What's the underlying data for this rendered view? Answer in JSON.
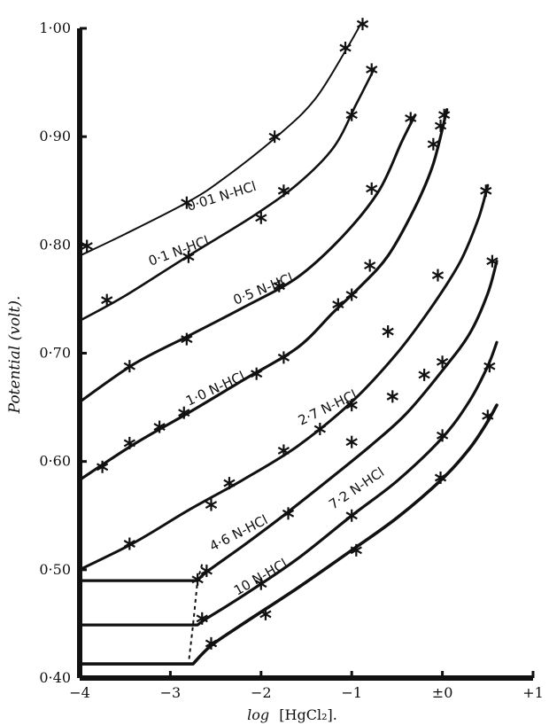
{
  "chart_data": {
    "type": "line",
    "title": "",
    "xlabel": "log [HgCl₂].",
    "xlabel_parts": {
      "prefix": "log",
      "suffix": "[HgCl₂]."
    },
    "ylabel": "Potential (volt).",
    "xlim": [
      -4,
      1
    ],
    "ylim": [
      0.4,
      1.0
    ],
    "x_ticks": [
      -4,
      -3,
      -2,
      -1,
      0,
      1
    ],
    "x_tick_labels": [
      "−4",
      "−3",
      "−2",
      "−1",
      "±0",
      "+1"
    ],
    "y_ticks": [
      0.4,
      0.5,
      0.6,
      0.7,
      0.8,
      0.9,
      1.0
    ],
    "y_tick_labels": [
      "0·40",
      "0·50",
      "0·60",
      "0·70",
      "0·80",
      "0·90",
      "1·00"
    ],
    "grid": false,
    "legend": "inline labels along curves",
    "series": [
      {
        "name": "0·01 N-HCl",
        "x": [
          -4.0,
          -3.5,
          -2.8,
          -2.4,
          -1.8,
          -1.4,
          -1.05,
          -0.9
        ],
        "y": [
          0.79,
          0.81,
          0.84,
          0.862,
          0.902,
          0.935,
          0.982,
          1.004
        ],
        "markers_x": [
          -3.92,
          -2.82,
          -1.85,
          -1.07,
          -0.88
        ],
        "markers_y": [
          0.799,
          0.839,
          0.9,
          0.982,
          1.004
        ]
      },
      {
        "name": "0·1 N-HCl",
        "x": [
          -4.0,
          -3.5,
          -2.8,
          -2.1,
          -1.6,
          -1.2,
          -0.95,
          -0.75
        ],
        "y": [
          0.73,
          0.753,
          0.79,
          0.826,
          0.856,
          0.89,
          0.93,
          0.963
        ],
        "markers_x": [
          -3.7,
          -2.8,
          -2.0,
          -1.75,
          -1.0,
          -0.78
        ],
        "markers_y": [
          0.749,
          0.789,
          0.825,
          0.85,
          0.92,
          0.962
        ]
      },
      {
        "name": "0·5 N-HCl",
        "x": [
          -4.0,
          -3.4,
          -2.8,
          -2.2,
          -1.6,
          -1.1,
          -0.7,
          -0.45,
          -0.3
        ],
        "y": [
          0.655,
          0.69,
          0.716,
          0.742,
          0.77,
          0.808,
          0.85,
          0.895,
          0.92
        ],
        "markers_x": [
          -3.45,
          -2.82,
          -1.8,
          -0.78,
          -0.35
        ],
        "markers_y": [
          0.688,
          0.713,
          0.762,
          0.852,
          0.917
        ]
      },
      {
        "name": "1·0 N-HCl",
        "x": [
          -4.0,
          -3.4,
          -2.8,
          -2.2,
          -1.6,
          -1.2,
          -0.9,
          -0.6,
          -0.3,
          -0.1,
          0.05
        ],
        "y": [
          0.583,
          0.616,
          0.645,
          0.675,
          0.705,
          0.738,
          0.762,
          0.79,
          0.835,
          0.875,
          0.925
        ],
        "markers_x": [
          -3.75,
          -3.45,
          -3.12,
          -2.85,
          -2.05,
          -1.75,
          -1.15,
          -1.0,
          -0.8,
          -0.1,
          -0.02,
          0.02
        ],
        "markers_y": [
          0.595,
          0.617,
          0.632,
          0.645,
          0.681,
          0.696,
          0.745,
          0.754,
          0.781,
          0.893,
          0.91,
          0.92
        ]
      },
      {
        "name": "2·7 N-HCl",
        "x": [
          -4.0,
          -3.4,
          -2.8,
          -2.2,
          -1.6,
          -1.0,
          -0.5,
          -0.1,
          0.2,
          0.4,
          0.5
        ],
        "y": [
          0.5,
          0.525,
          0.555,
          0.583,
          0.614,
          0.655,
          0.7,
          0.745,
          0.785,
          0.825,
          0.855
        ],
        "markers_x": [
          -3.45,
          -2.55,
          -2.35,
          -1.75,
          -1.35,
          -1.0,
          -0.6,
          -0.05,
          0.48
        ],
        "markers_y": [
          0.524,
          0.56,
          0.58,
          0.61,
          0.63,
          0.652,
          0.72,
          0.772,
          0.85
        ]
      },
      {
        "name": "4·6 N-HCl",
        "x": [
          -4.0,
          -2.7,
          -2.6,
          -2.2,
          -1.8,
          -1.3,
          -0.8,
          -0.4,
          0.0,
          0.3,
          0.5,
          0.6
        ],
        "y": [
          0.49,
          0.49,
          0.498,
          0.522,
          0.547,
          0.58,
          0.614,
          0.644,
          0.684,
          0.718,
          0.755,
          0.785
        ],
        "markers_x": [
          -2.7,
          -2.6,
          -1.7,
          -1.0,
          -0.55,
          -0.2,
          0.0,
          0.55
        ],
        "markers_y": [
          0.491,
          0.499,
          0.552,
          0.618,
          0.66,
          0.68,
          0.692,
          0.785
        ]
      },
      {
        "name": "7·2 N-HCl",
        "x": [
          -4.0,
          -2.7,
          -2.6,
          -2.2,
          -1.6,
          -1.0,
          -0.5,
          0.0,
          0.3,
          0.5,
          0.6
        ],
        "y": [
          0.449,
          0.449,
          0.455,
          0.476,
          0.51,
          0.55,
          0.582,
          0.622,
          0.656,
          0.688,
          0.71
        ],
        "markers_x": [
          -2.65,
          -2.0,
          -1.0,
          0.0,
          0.52
        ],
        "markers_y": [
          0.455,
          0.487,
          0.55,
          0.624,
          0.688
        ]
      },
      {
        "name": "10 N-HCl",
        "x": [
          -4.0,
          -2.75,
          -2.55,
          -2.2,
          -1.6,
          -1.0,
          -0.5,
          0.0,
          0.3,
          0.5,
          0.6
        ],
        "y": [
          0.413,
          0.413,
          0.43,
          0.45,
          0.483,
          0.518,
          0.548,
          0.584,
          0.612,
          0.637,
          0.652
        ],
        "markers_x": [
          -2.55,
          -1.95,
          -0.95,
          -0.02,
          0.5
        ],
        "markers_y": [
          0.432,
          0.459,
          0.518,
          0.585,
          0.642
        ]
      }
    ],
    "break_line": {
      "x": [
        -2.65,
        -2.7,
        -2.75,
        -2.8
      ],
      "y": [
        0.505,
        0.49,
        0.449,
        0.413
      ]
    }
  },
  "series_label_positions": [
    "0·01 N-HCl",
    "0·1 N-HCl",
    "0·5 N-HCl",
    "1·0 N-HCl",
    "2·7 N-HCl",
    "4·6 N-HCl",
    "7·2 N-HCl",
    "10 N-HCl"
  ]
}
